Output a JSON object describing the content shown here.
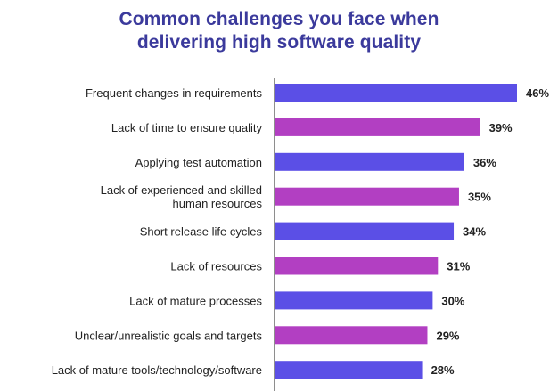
{
  "chart_data": {
    "type": "bar",
    "orientation": "horizontal",
    "title": "Common challenges you face when delivering high software quality",
    "title_lines": [
      "Common challenges you face when",
      "delivering high software quality"
    ],
    "categories": [
      "Frequent changes in requirements",
      "Lack of time to ensure quality",
      "Applying test automation",
      "Lack of experienced and skilled human resources",
      "Short release life cycles",
      "Lack of resources",
      "Lack of mature processes",
      "Unclear/unrealistic goals and targets",
      "Lack of mature tools/technology/software"
    ],
    "category_lines": [
      [
        "Frequent changes in requirements"
      ],
      [
        "Lack of time to ensure quality"
      ],
      [
        "Applying test automation"
      ],
      [
        "Lack of experienced and skilled",
        "human resources"
      ],
      [
        "Short release life cycles"
      ],
      [
        "Lack of resources"
      ],
      [
        "Lack of mature processes"
      ],
      [
        "Unclear/unrealistic goals and targets"
      ],
      [
        "Lack of mature tools/technology/software"
      ]
    ],
    "values": [
      46,
      39,
      36,
      35,
      34,
      31,
      30,
      29,
      28
    ],
    "value_labels": [
      "46%",
      "39%",
      "36%",
      "35%",
      "34%",
      "31%",
      "30%",
      "29%",
      "28%"
    ],
    "unit": "%",
    "xlim": [
      0,
      46
    ],
    "grid": false,
    "legend": "none",
    "colors": {
      "title": "#3b3a9c",
      "bar_primary": "#5b4fe6",
      "bar_secondary": "#b23fc2",
      "axis": "#444444",
      "label": "#222222"
    },
    "bar_color_pattern": [
      "bar_primary",
      "bar_secondary"
    ]
  }
}
